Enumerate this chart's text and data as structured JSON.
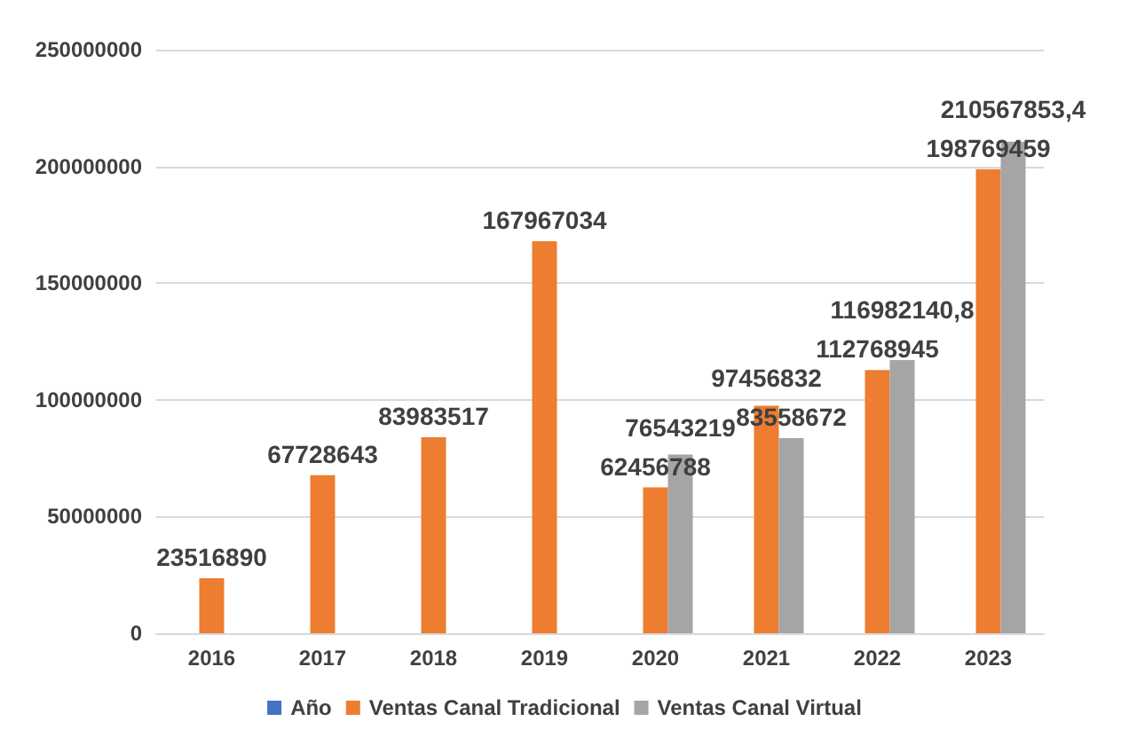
{
  "chart_data": {
    "type": "bar",
    "categories": [
      "2016",
      "2017",
      "2018",
      "2019",
      "2020",
      "2021",
      "2022",
      "2023"
    ],
    "series": [
      {
        "name": "Año",
        "color": "#4472c4",
        "values": [
          null,
          null,
          null,
          null,
          null,
          null,
          null,
          null
        ]
      },
      {
        "name": "Ventas Canal Tradicional",
        "color": "#ed7d31",
        "values": [
          23516890,
          67728643,
          83983517,
          167967034,
          62456788,
          97456832,
          112768945,
          198769459
        ],
        "value_labels": [
          "23516890",
          "67728643",
          "83983517",
          "167967034",
          "62456788",
          "97456832",
          "112768945",
          "198769459"
        ]
      },
      {
        "name": "Ventas Canal Virtual",
        "color": "#a5a5a5",
        "values": [
          null,
          null,
          null,
          null,
          76543219,
          83558672,
          116982140.8,
          210567853.4
        ],
        "value_labels": [
          null,
          null,
          null,
          null,
          "76543219",
          "83558672",
          "116982140,8",
          "210567853,4"
        ]
      }
    ],
    "ylim": [
      0,
      250000000
    ],
    "yticks": [
      0,
      50000000,
      100000000,
      150000000,
      200000000,
      250000000
    ],
    "grid": "y",
    "legend": "bottom"
  }
}
